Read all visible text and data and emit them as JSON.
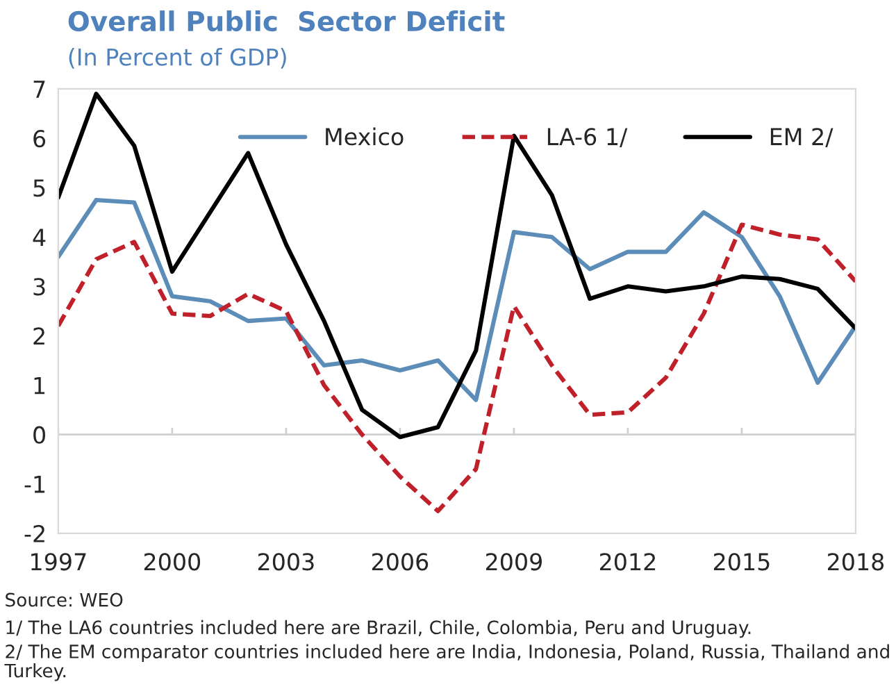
{
  "chart_data": {
    "type": "line",
    "title": "Overall Public  Sector Deficit",
    "subtitle": "(In Percent of GDP)",
    "x": [
      1997,
      1998,
      1999,
      2000,
      2001,
      2002,
      2003,
      2004,
      2005,
      2006,
      2007,
      2008,
      2009,
      2010,
      2011,
      2012,
      2013,
      2014,
      2015,
      2016,
      2017,
      2018
    ],
    "series": [
      {
        "name": "Mexico",
        "color": "#5b8db8",
        "line_style": "solid",
        "values": [
          3.6,
          4.75,
          4.7,
          2.8,
          2.7,
          2.3,
          2.35,
          1.4,
          1.5,
          1.3,
          1.5,
          0.7,
          4.1,
          4.0,
          3.35,
          3.7,
          3.7,
          4.5,
          4.0,
          2.8,
          1.05,
          2.2
        ]
      },
      {
        "name": "LA-6 1/",
        "color": "#c0202a",
        "line_style": "dashed",
        "values": [
          2.2,
          3.55,
          3.9,
          2.45,
          2.4,
          2.85,
          2.5,
          1.0,
          0.0,
          -0.85,
          -1.55,
          -0.7,
          2.6,
          1.4,
          0.4,
          0.45,
          1.15,
          2.45,
          4.25,
          4.05,
          3.95,
          3.1
        ]
      },
      {
        "name": "EM 2/",
        "color": "#000000",
        "line_style": "solid",
        "values": [
          4.8,
          6.9,
          5.85,
          3.3,
          4.5,
          5.7,
          3.85,
          2.3,
          0.5,
          -0.05,
          0.15,
          1.7,
          6.05,
          4.85,
          2.75,
          3.0,
          2.9,
          3.0,
          3.2,
          3.15,
          2.95,
          2.15
        ]
      }
    ],
    "xlim": [
      1997,
      2018
    ],
    "xticks": [
      1997,
      2000,
      2003,
      2006,
      2009,
      2012,
      2015,
      2018
    ],
    "ylim": [
      -2,
      7
    ],
    "yticks": [
      -2,
      -1,
      0,
      1,
      2,
      3,
      4,
      5,
      6,
      7
    ],
    "ref_lines": [
      {
        "axis": "y",
        "value": 0,
        "color": "#d0d0d0"
      }
    ],
    "grid": false,
    "legend": "top",
    "marker": "none",
    "annotations": [
      "Source: WEO",
      "1/ The LA6 countries included here are Brazil, Chile, Colombia, Peru and Uruguay.",
      "2/ The EM comparator countries included here are India, Indonesia, Poland, Russia, Thailand and Turkey."
    ]
  }
}
